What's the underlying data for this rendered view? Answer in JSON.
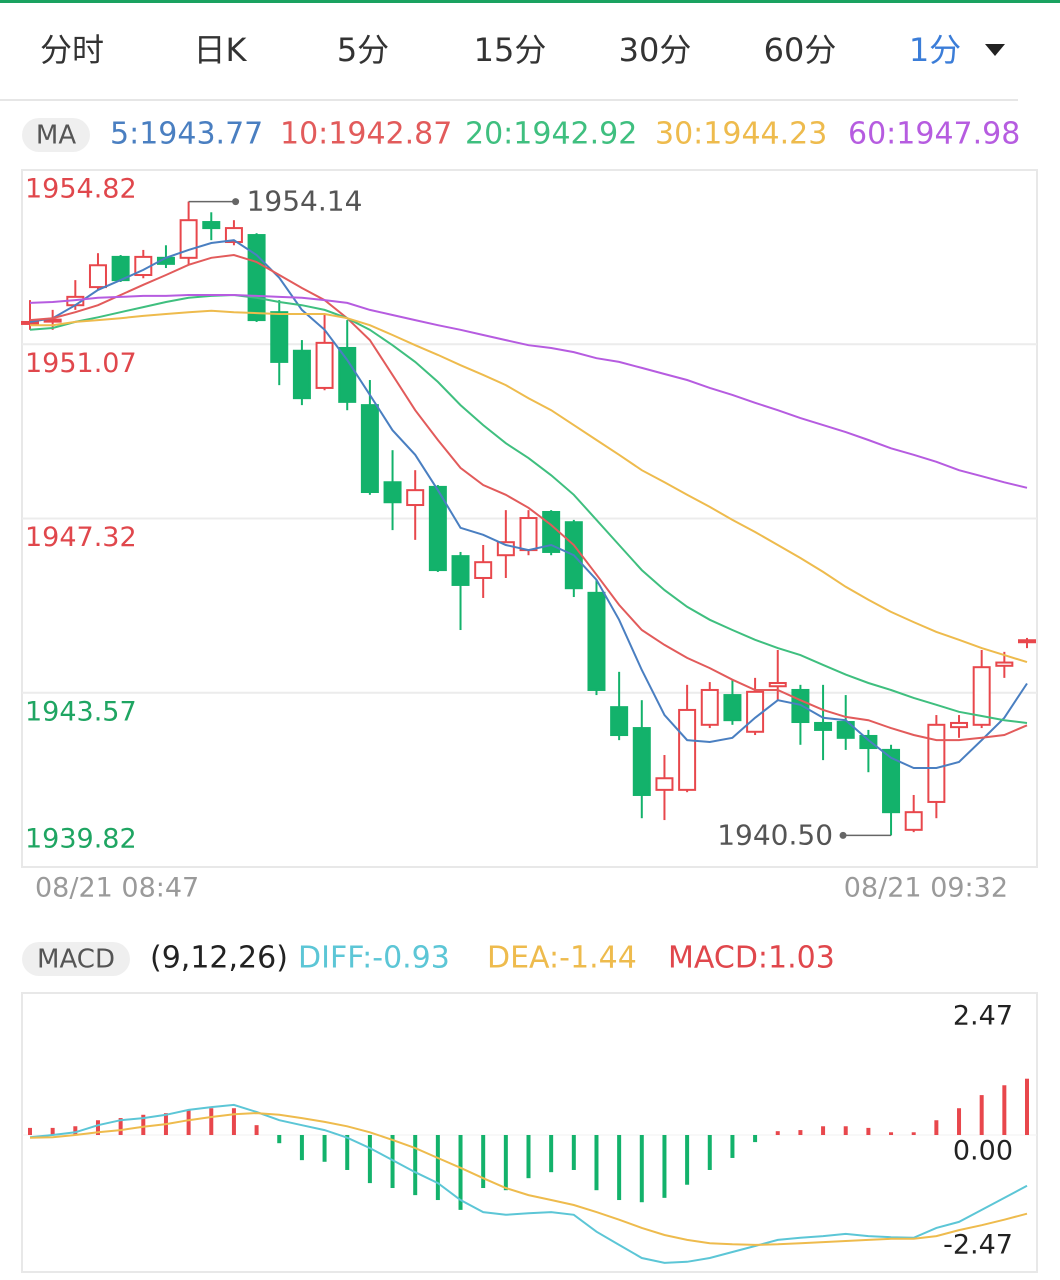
{
  "tabs": {
    "items": [
      "分时",
      "日K",
      "5分",
      "15分",
      "30分",
      "60分",
      "1分"
    ],
    "active": 6,
    "active_color": "#3b7dd8"
  },
  "chart_data": [
    {
      "type": "candlestick",
      "legend_label": "MA",
      "categories": [
        "08/21 08:47",
        null,
        null,
        null,
        null,
        null,
        null,
        null,
        null,
        null,
        null,
        null,
        null,
        null,
        null,
        null,
        null,
        null,
        null,
        null,
        null,
        null,
        null,
        null,
        null,
        null,
        null,
        null,
        null,
        null,
        null,
        null,
        null,
        null,
        null,
        null,
        null,
        null,
        null,
        null,
        null,
        null,
        null,
        null,
        "08/21 09:32"
      ],
      "open": [
        1951.55,
        1951.58,
        1951.91,
        1952.3,
        1952.95,
        1952.56,
        1952.93,
        1952.93,
        1953.7,
        1953.27,
        1953.42,
        1951.76,
        1950.93,
        1950.13,
        1950.99,
        1949.76,
        1948.1,
        1947.61,
        1948.0,
        1946.51,
        1946.04,
        1946.53,
        1946.64,
        1947.46,
        1947.24,
        1945.72,
        1943.26,
        1942.81,
        1941.48,
        1941.48,
        1942.88,
        1943.52,
        1942.73,
        1943.71,
        1943.63,
        1942.92,
        1942.94,
        1942.64,
        1942.34,
        1940.62,
        1941.22,
        1942.83,
        1942.88,
        1944.15,
        1944.66
      ],
      "high": [
        1952.02,
        1951.81,
        1952.45,
        1953.03,
        1952.99,
        1953.1,
        1953.2,
        1954.14,
        1953.91,
        1953.74,
        1953.46,
        1952.02,
        1951.16,
        1951.7,
        1951.59,
        1950.3,
        1948.79,
        1948.36,
        1948.04,
        1946.6,
        1946.75,
        1947.5,
        1947.5,
        1947.5,
        1947.29,
        1946.0,
        1944.02,
        1943.41,
        1942.23,
        1943.74,
        1943.8,
        1943.84,
        1943.89,
        1944.49,
        1943.74,
        1943.74,
        1943.52,
        1942.77,
        1942.45,
        1941.37,
        1943.09,
        1943.09,
        1944.49,
        1944.45,
        1944.75
      ],
      "low": [
        1951.38,
        1951.38,
        1951.81,
        1952.24,
        1952.41,
        1952.49,
        1952.71,
        1952.77,
        1953.31,
        1953.2,
        1951.55,
        1950.19,
        1949.76,
        1950.08,
        1949.65,
        1947.83,
        1947.07,
        1946.86,
        1946.17,
        1944.92,
        1945.61,
        1946.04,
        1946.53,
        1946.53,
        1945.63,
        1943.52,
        1942.55,
        1940.87,
        1940.83,
        1941.43,
        1942.81,
        1942.88,
        1942.66,
        1943.41,
        1942.45,
        1942.12,
        1942.34,
        1941.86,
        1940.5,
        1940.57,
        1940.87,
        1942.6,
        1942.81,
        1943.89,
        1944.53
      ],
      "close": [
        1951.55,
        1951.6,
        1952.09,
        1952.77,
        1952.45,
        1952.95,
        1952.8,
        1953.74,
        1953.57,
        1953.57,
        1951.59,
        1950.69,
        1949.91,
        1951.1,
        1949.83,
        1947.89,
        1947.67,
        1947.93,
        1946.21,
        1945.89,
        1946.38,
        1946.81,
        1947.33,
        1946.6,
        1945.82,
        1943.63,
        1942.66,
        1941.37,
        1941.73,
        1943.2,
        1943.63,
        1942.98,
        1943.59,
        1943.78,
        1942.94,
        1942.77,
        1942.6,
        1942.38,
        1941.0,
        1941.0,
        1942.88,
        1942.92,
        1944.12,
        1944.22,
        1944.7
      ],
      "up_color": "#e8474c",
      "down_color": "#13b26b",
      "series": [
        {
          "name": "5:1943.77",
          "color": "#4a7fc1",
          "values": [
            1951.55,
            1951.63,
            1951.91,
            1952.24,
            1952.45,
            1952.67,
            1952.93,
            1953.1,
            1953.25,
            1953.31,
            1952.99,
            1952.5,
            1951.81,
            1951.38,
            1950.73,
            1949.98,
            1949.22,
            1948.69,
            1947.93,
            1947.12,
            1946.97,
            1946.75,
            1946.64,
            1946.75,
            1946.53,
            1946.0,
            1945.14,
            1944.06,
            1943.09,
            1942.55,
            1942.51,
            1942.6,
            1943.03,
            1943.41,
            1943.31,
            1943.03,
            1942.98,
            1942.55,
            1942.17,
            1941.95,
            1941.95,
            1942.08,
            1942.55,
            1943.03,
            1943.77
          ]
        },
        {
          "name": "10:1942.87",
          "color": "#e25b5b",
          "values": [
            1951.59,
            1951.63,
            1951.76,
            1951.91,
            1952.13,
            1952.35,
            1952.56,
            1952.78,
            1952.93,
            1952.99,
            1952.84,
            1952.56,
            1952.28,
            1952.02,
            1951.63,
            1951.16,
            1950.41,
            1949.65,
            1949.01,
            1948.41,
            1948.04,
            1947.83,
            1947.55,
            1947.18,
            1946.75,
            1946.11,
            1945.46,
            1944.92,
            1944.6,
            1944.32,
            1944.1,
            1943.85,
            1943.63,
            1943.63,
            1943.41,
            1943.2,
            1943.05,
            1942.98,
            1942.81,
            1942.66,
            1942.55,
            1942.55,
            1942.6,
            1942.66,
            1942.87
          ]
        },
        {
          "name": "20:1942.92",
          "color": "#3fbf7f",
          "values": [
            1951.38,
            1951.42,
            1951.55,
            1951.65,
            1951.76,
            1951.87,
            1951.98,
            1952.07,
            1952.11,
            1952.13,
            1952.07,
            1951.98,
            1951.91,
            1951.81,
            1951.63,
            1951.38,
            1951.05,
            1950.69,
            1950.26,
            1949.76,
            1949.33,
            1948.94,
            1948.62,
            1948.25,
            1947.83,
            1947.29,
            1946.75,
            1946.21,
            1945.78,
            1945.42,
            1945.14,
            1944.92,
            1944.71,
            1944.53,
            1944.38,
            1944.17,
            1943.96,
            1943.78,
            1943.63,
            1943.46,
            1943.31,
            1943.16,
            1943.07,
            1942.98,
            1942.92
          ]
        },
        {
          "name": "30:1944.23",
          "color": "#eebb4d",
          "values": [
            1951.48,
            1951.48,
            1951.55,
            1951.59,
            1951.63,
            1951.68,
            1951.72,
            1951.76,
            1951.79,
            1951.76,
            1951.74,
            1951.72,
            1951.72,
            1951.72,
            1951.63,
            1951.48,
            1951.27,
            1951.05,
            1950.84,
            1950.62,
            1950.41,
            1950.19,
            1949.91,
            1949.65,
            1949.33,
            1949.01,
            1948.69,
            1948.36,
            1948.1,
            1947.83,
            1947.57,
            1947.29,
            1947.03,
            1946.75,
            1946.47,
            1946.17,
            1945.85,
            1945.57,
            1945.31,
            1945.09,
            1944.88,
            1944.71,
            1944.53,
            1944.38,
            1944.23
          ]
        },
        {
          "name": "60:1947.98",
          "color": "#b65ce0",
          "values": [
            1951.96,
            1951.98,
            1952.02,
            1952.07,
            1952.09,
            1952.11,
            1952.11,
            1952.13,
            1952.13,
            1952.13,
            1952.11,
            1952.09,
            1952.07,
            1952.02,
            1951.96,
            1951.81,
            1951.7,
            1951.59,
            1951.48,
            1951.38,
            1951.27,
            1951.16,
            1951.05,
            1950.99,
            1950.9,
            1950.77,
            1950.69,
            1950.56,
            1950.43,
            1950.3,
            1950.13,
            1949.98,
            1949.81,
            1949.65,
            1949.48,
            1949.33,
            1949.18,
            1949.01,
            1948.83,
            1948.69,
            1948.54,
            1948.36,
            1948.23,
            1948.1,
            1947.98
          ]
        }
      ],
      "ylim": [
        1939.82,
        1954.82
      ],
      "yticks": [
        1954.82,
        1951.07,
        1947.32,
        1943.57,
        1939.82
      ],
      "ytick_colors": [
        "#e0474c",
        "#e0474c",
        "#e0474c",
        "#1fa562",
        "#1fa562"
      ],
      "max_label": "1954.14",
      "min_label": "1940.50",
      "grid": true
    },
    {
      "type": "macd",
      "legend_label": "MACD",
      "params": "(9,12,26)",
      "up_color": "#e8474c",
      "down_color": "#13b26b",
      "histogram": {
        "name": "MACD:1.03",
        "color": "#e0474c",
        "values": [
          0.13,
          0.13,
          0.16,
          0.27,
          0.31,
          0.37,
          0.4,
          0.46,
          0.49,
          0.49,
          0.18,
          -0.15,
          -0.46,
          -0.49,
          -0.64,
          -0.88,
          -0.97,
          -1.1,
          -1.19,
          -1.37,
          -0.97,
          -1.01,
          -0.79,
          -0.68,
          -0.64,
          -1.01,
          -1.19,
          -1.23,
          -1.15,
          -0.91,
          -0.64,
          -0.42,
          -0.13,
          0.07,
          0.09,
          0.16,
          0.16,
          0.13,
          0.05,
          0.05,
          0.27,
          0.49,
          0.73,
          0.91,
          1.03
        ]
      },
      "series": [
        {
          "name": "DIFF:-0.93",
          "color": "#5cc6d6",
          "values": [
            -0.04,
            0.0,
            0.05,
            0.18,
            0.27,
            0.31,
            0.37,
            0.46,
            0.51,
            0.55,
            0.42,
            0.27,
            0.18,
            0.09,
            -0.05,
            -0.24,
            -0.46,
            -0.68,
            -0.88,
            -1.19,
            -1.41,
            -1.46,
            -1.43,
            -1.41,
            -1.46,
            -1.77,
            -2.01,
            -2.25,
            -2.34,
            -2.32,
            -2.25,
            -2.14,
            -2.03,
            -1.92,
            -1.88,
            -1.85,
            -1.81,
            -1.85,
            -1.87,
            -1.88,
            -1.7,
            -1.59,
            -1.37,
            -1.15,
            -0.93
          ]
        },
        {
          "name": "DEA:-1.44",
          "color": "#eebb4d",
          "values": [
            -0.05,
            -0.04,
            0.0,
            0.05,
            0.09,
            0.15,
            0.2,
            0.27,
            0.33,
            0.38,
            0.4,
            0.37,
            0.31,
            0.24,
            0.16,
            0.05,
            -0.09,
            -0.24,
            -0.42,
            -0.6,
            -0.79,
            -0.97,
            -1.1,
            -1.19,
            -1.28,
            -1.41,
            -1.55,
            -1.7,
            -1.83,
            -1.92,
            -1.98,
            -2.0,
            -2.01,
            -2.0,
            -1.98,
            -1.96,
            -1.94,
            -1.92,
            -1.9,
            -1.9,
            -1.85,
            -1.74,
            -1.65,
            -1.55,
            -1.44
          ]
        }
      ],
      "ylim": [
        -2.47,
        2.47
      ],
      "yticks": [
        2.47,
        {
          "value": 0,
          "label": "0.00"
        },
        -2.47
      ]
    }
  ]
}
